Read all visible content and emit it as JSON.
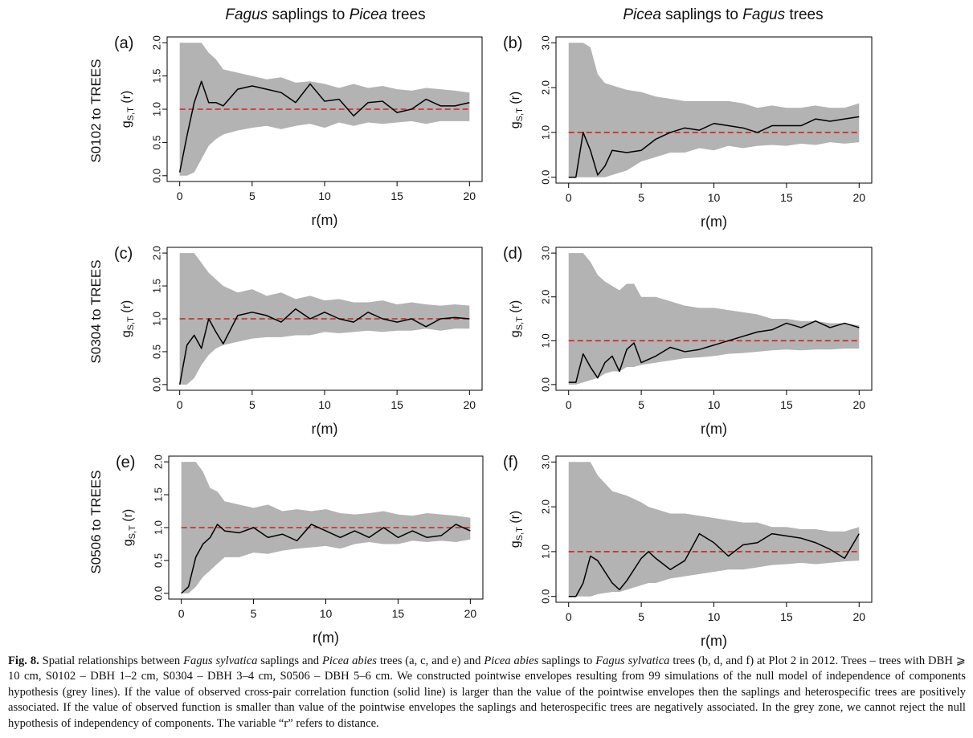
{
  "columns": [
    {
      "species_a": "Fagus",
      "mid": " saplings to ",
      "species_b": "Picea",
      "tail": " trees"
    },
    {
      "species_a": "Picea",
      "mid": " saplings to ",
      "species_b": "Fagus",
      "tail": " trees"
    }
  ],
  "rows": [
    {
      "label": "S0102 to TREES"
    },
    {
      "label": "S0304 to TREES"
    },
    {
      "label": "S0506 to TREES"
    }
  ],
  "caption": {
    "fig": "Fig. 8.",
    "segments": [
      {
        "t": " Spatial relationships between ",
        "i": false
      },
      {
        "t": "Fagus sylvatica",
        "i": true
      },
      {
        "t": " saplings and ",
        "i": false
      },
      {
        "t": "Picea abies",
        "i": true
      },
      {
        "t": " trees (a, c, and e) and ",
        "i": false
      },
      {
        "t": "Picea abies",
        "i": true
      },
      {
        "t": " saplings to ",
        "i": false
      },
      {
        "t": "Fagus sylvatica",
        "i": true
      },
      {
        "t": " trees (b, d, and f) at Plot 2 in 2012. Trees – trees with DBH ⩾ 10 cm, S0102 – DBH 1–2 cm, S0304 – DBH 3–4 cm, S0506 – DBH 5–6 cm. We constructed pointwise envelopes resulting from 99 simulations of the null model of independence of components hypothesis (grey lines). If the value of observed cross-pair correlation function (solid line) is larger than the value of the pointwise envelopes then the saplings and heterospecific trees are positively associated. If the value of observed function is smaller than value of the pointwise envelopes the saplings and heterospecific trees are negatively associated. In the grey zone, we cannot reject the null hypothesis of independency of components. The variable “r” refers to distance.",
        "i": false
      }
    ]
  },
  "colors": {
    "envelope": "#b3b3b3",
    "observed": "#000000",
    "reference": "#cc2222",
    "axis": "#000000"
  },
  "chart_data": [
    {
      "panel": "(a)",
      "type": "line",
      "xlabel": "r(m)",
      "ylabel": "g_{S,T} (r)",
      "xlim": [
        0,
        20
      ],
      "ylim": [
        0,
        2.0
      ],
      "xticks": [
        0,
        5,
        10,
        15,
        20
      ],
      "yticks": [
        "0.0",
        "0.5",
        "1.0",
        "1.5",
        "2.0"
      ],
      "reference_line": 1.0,
      "x": [
        0,
        0.5,
        1,
        1.5,
        2,
        2.5,
        3,
        4,
        5,
        6,
        7,
        8,
        9,
        10,
        11,
        12,
        13,
        14,
        15,
        16,
        17,
        18,
        19,
        20
      ],
      "observed": [
        0.05,
        0.6,
        1.1,
        1.42,
        1.1,
        1.1,
        1.05,
        1.3,
        1.35,
        1.3,
        1.25,
        1.1,
        1.38,
        1.12,
        1.15,
        0.9,
        1.1,
        1.12,
        0.95,
        1.0,
        1.15,
        1.05,
        1.05,
        1.1
      ],
      "env_upper": [
        2.0,
        2.0,
        2.0,
        2.0,
        1.85,
        1.75,
        1.6,
        1.55,
        1.5,
        1.45,
        1.48,
        1.4,
        1.42,
        1.38,
        1.32,
        1.38,
        1.32,
        1.35,
        1.3,
        1.28,
        1.32,
        1.3,
        1.28,
        1.25
      ],
      "env_lower": [
        0.0,
        0.0,
        0.05,
        0.25,
        0.45,
        0.55,
        0.62,
        0.68,
        0.72,
        0.75,
        0.7,
        0.75,
        0.78,
        0.72,
        0.8,
        0.75,
        0.8,
        0.78,
        0.8,
        0.82,
        0.78,
        0.82,
        0.82,
        0.82
      ]
    },
    {
      "panel": "(b)",
      "type": "line",
      "xlabel": "r(m)",
      "ylabel": "g_{S,T} (r)",
      "xlim": [
        0,
        20
      ],
      "ylim": [
        0,
        3.0
      ],
      "xticks": [
        0,
        5,
        10,
        15,
        20
      ],
      "yticks": [
        "0.0",
        "1.0",
        "2.0",
        "3.0"
      ],
      "reference_line": 1.0,
      "x": [
        0,
        0.5,
        1,
        1.5,
        2,
        2.5,
        3,
        4,
        5,
        6,
        7,
        8,
        9,
        10,
        11,
        12,
        13,
        14,
        15,
        16,
        17,
        18,
        19,
        20
      ],
      "observed": [
        0.0,
        0.0,
        1.0,
        0.6,
        0.05,
        0.25,
        0.6,
        0.55,
        0.6,
        0.85,
        1.0,
        1.1,
        1.05,
        1.2,
        1.15,
        1.1,
        1.0,
        1.15,
        1.15,
        1.15,
        1.3,
        1.25,
        1.3,
        1.35
      ],
      "env_upper": [
        3.0,
        3.0,
        3.0,
        2.9,
        2.3,
        2.1,
        2.05,
        1.95,
        1.9,
        1.8,
        1.75,
        1.7,
        1.7,
        1.7,
        1.7,
        1.65,
        1.55,
        1.6,
        1.55,
        1.55,
        1.6,
        1.55,
        1.55,
        1.65
      ],
      "env_lower": [
        0.0,
        0.0,
        0.0,
        0.0,
        0.0,
        0.0,
        0.05,
        0.15,
        0.35,
        0.45,
        0.55,
        0.55,
        0.65,
        0.6,
        0.7,
        0.65,
        0.7,
        0.72,
        0.7,
        0.75,
        0.72,
        0.78,
        0.75,
        0.78
      ]
    },
    {
      "panel": "(c)",
      "type": "line",
      "xlabel": "r(m)",
      "ylabel": "g_{S,T} (r)",
      "xlim": [
        0,
        20
      ],
      "ylim": [
        0,
        2.0
      ],
      "xticks": [
        0,
        5,
        10,
        15,
        20
      ],
      "yticks": [
        "0.0",
        "0.5",
        "1.0",
        "1.5",
        "2.0"
      ],
      "reference_line": 1.0,
      "x": [
        0,
        0.5,
        1,
        1.5,
        2,
        2.5,
        3,
        4,
        5,
        6,
        7,
        8,
        9,
        10,
        11,
        12,
        13,
        14,
        15,
        16,
        17,
        18,
        19,
        20
      ],
      "observed": [
        0.0,
        0.6,
        0.75,
        0.55,
        1.0,
        0.8,
        0.62,
        1.05,
        1.1,
        1.05,
        0.95,
        1.15,
        1.0,
        1.1,
        1.0,
        0.95,
        1.1,
        1.0,
        0.95,
        1.0,
        0.88,
        1.0,
        1.02,
        1.0
      ],
      "env_upper": [
        2.0,
        2.0,
        2.0,
        1.85,
        1.7,
        1.6,
        1.5,
        1.4,
        1.45,
        1.35,
        1.4,
        1.3,
        1.35,
        1.28,
        1.3,
        1.25,
        1.25,
        1.28,
        1.22,
        1.25,
        1.22,
        1.2,
        1.22,
        1.2
      ],
      "env_lower": [
        0.0,
        0.0,
        0.1,
        0.3,
        0.45,
        0.55,
        0.6,
        0.65,
        0.7,
        0.72,
        0.72,
        0.75,
        0.75,
        0.8,
        0.78,
        0.8,
        0.82,
        0.8,
        0.82,
        0.82,
        0.85,
        0.82,
        0.85,
        0.85
      ]
    },
    {
      "panel": "(d)",
      "type": "line",
      "xlabel": "r(m)",
      "ylabel": "g_{S,T} (r)",
      "xlim": [
        0,
        20
      ],
      "ylim": [
        0,
        3.0
      ],
      "xticks": [
        0,
        5,
        10,
        15,
        20
      ],
      "yticks": [
        "0.0",
        "1.0",
        "2.0",
        "3.0"
      ],
      "reference_line": 1.0,
      "x": [
        0,
        0.5,
        1,
        1.5,
        2,
        2.5,
        3,
        3.5,
        4,
        4.5,
        5,
        6,
        7,
        8,
        9,
        10,
        11,
        12,
        13,
        14,
        15,
        16,
        17,
        18,
        19,
        20
      ],
      "observed": [
        0.05,
        0.05,
        0.7,
        0.4,
        0.15,
        0.5,
        0.65,
        0.3,
        0.8,
        0.95,
        0.5,
        0.65,
        0.85,
        0.75,
        0.8,
        0.9,
        1.0,
        1.1,
        1.2,
        1.25,
        1.4,
        1.3,
        1.45,
        1.3,
        1.4,
        1.3
      ],
      "env_upper": [
        3.0,
        3.0,
        3.0,
        2.8,
        2.5,
        2.35,
        2.25,
        2.15,
        2.3,
        2.3,
        2.0,
        2.0,
        1.9,
        1.8,
        1.75,
        1.75,
        1.7,
        1.65,
        1.6,
        1.5,
        1.5,
        1.45,
        1.45,
        1.4,
        1.4,
        1.35
      ],
      "env_lower": [
        0.0,
        0.0,
        0.05,
        0.1,
        0.15,
        0.25,
        0.3,
        0.3,
        0.4,
        0.4,
        0.45,
        0.5,
        0.55,
        0.6,
        0.62,
        0.65,
        0.7,
        0.72,
        0.75,
        0.78,
        0.8,
        0.78,
        0.8,
        0.8,
        0.82,
        0.82
      ]
    },
    {
      "panel": "(e)",
      "type": "line",
      "xlabel": "r(m)",
      "ylabel": "g_{S,T} (r)",
      "xlim": [
        0,
        20
      ],
      "ylim": [
        0,
        2.0
      ],
      "xticks": [
        0,
        5,
        10,
        15,
        20
      ],
      "yticks": [
        "0.0",
        "0.5",
        "1.0",
        "1.5",
        "2.0"
      ],
      "reference_line": 1.0,
      "x": [
        0,
        0.5,
        1,
        1.5,
        2,
        2.5,
        3,
        4,
        5,
        6,
        7,
        8,
        9,
        10,
        11,
        12,
        13,
        14,
        15,
        16,
        17,
        18,
        19,
        20
      ],
      "observed": [
        0.0,
        0.1,
        0.55,
        0.75,
        0.85,
        1.05,
        0.95,
        0.92,
        1.0,
        0.85,
        0.9,
        0.8,
        1.05,
        0.95,
        0.85,
        0.95,
        0.85,
        1.0,
        0.85,
        0.95,
        0.85,
        0.88,
        1.05,
        0.95
      ],
      "env_upper": [
        2.0,
        2.0,
        2.0,
        1.85,
        1.6,
        1.55,
        1.4,
        1.35,
        1.3,
        1.35,
        1.25,
        1.28,
        1.25,
        1.28,
        1.22,
        1.2,
        1.22,
        1.25,
        1.2,
        1.18,
        1.22,
        1.2,
        1.18,
        1.15
      ],
      "env_lower": [
        0.0,
        0.0,
        0.1,
        0.25,
        0.35,
        0.45,
        0.55,
        0.55,
        0.62,
        0.6,
        0.65,
        0.68,
        0.7,
        0.72,
        0.68,
        0.75,
        0.78,
        0.75,
        0.75,
        0.8,
        0.78,
        0.8,
        0.78,
        0.82
      ]
    },
    {
      "panel": "(f)",
      "type": "line",
      "xlabel": "r(m)",
      "ylabel": "g_{S,T} (r)",
      "xlim": [
        0,
        20
      ],
      "ylim": [
        0,
        3.0
      ],
      "xticks": [
        0,
        5,
        10,
        15,
        20
      ],
      "yticks": [
        "0.0",
        "1.0",
        "2.0",
        "3.0"
      ],
      "reference_line": 1.0,
      "x": [
        0,
        0.5,
        1,
        1.5,
        2,
        3,
        3.5,
        4,
        5,
        5.5,
        6,
        7,
        8,
        9,
        10,
        11,
        12,
        13,
        14,
        15,
        16,
        17,
        18,
        19,
        20
      ],
      "observed": [
        0.0,
        0.0,
        0.3,
        0.9,
        0.8,
        0.3,
        0.15,
        0.35,
        0.85,
        1.0,
        0.85,
        0.6,
        0.8,
        1.4,
        1.2,
        0.9,
        1.15,
        1.2,
        1.4,
        1.35,
        1.3,
        1.2,
        1.05,
        0.85,
        1.4
      ],
      "env_upper": [
        3.0,
        3.0,
        3.0,
        3.0,
        2.7,
        2.35,
        2.3,
        2.25,
        2.1,
        2.0,
        1.95,
        1.85,
        1.85,
        1.8,
        1.75,
        1.7,
        1.65,
        1.65,
        1.55,
        1.55,
        1.5,
        1.5,
        1.45,
        1.45,
        1.55
      ],
      "env_lower": [
        0.0,
        0.0,
        0.0,
        0.0,
        0.05,
        0.1,
        0.1,
        0.15,
        0.25,
        0.3,
        0.3,
        0.4,
        0.45,
        0.5,
        0.55,
        0.6,
        0.6,
        0.65,
        0.7,
        0.72,
        0.75,
        0.72,
        0.75,
        0.78,
        0.8
      ]
    }
  ]
}
